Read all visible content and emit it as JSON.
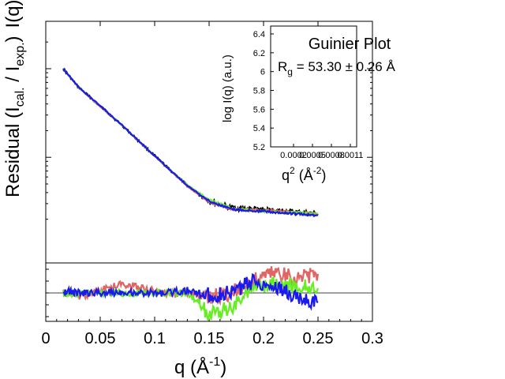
{
  "chart_data": [
    {
      "type": "line",
      "panel": "main",
      "ylabel_main": "I(q)  (a.u.)",
      "ylabel_residual": "Residual (I",
      "ylabel_residual_sub1": "cal.",
      "ylabel_residual_mid": " / I",
      "ylabel_residual_sub2": "exp.",
      "ylabel_residual_end": ")",
      "xlabel": "q (Å",
      "xlabel_sup": "-1",
      "xlabel_end": ")",
      "xlim": [
        0,
        0.3
      ],
      "x_ticks": [
        "0",
        "0.05",
        "0.1",
        "0.15",
        "0.2",
        "0.25",
        "0.3"
      ],
      "y_scale": "log",
      "grid": false,
      "series": [
        {
          "color": "#000000",
          "x": [
            0.016,
            0.03,
            0.05,
            0.07,
            0.09,
            0.11,
            0.13,
            0.15,
            0.17,
            0.19,
            0.21,
            0.23,
            0.25
          ],
          "y": [
            1.0,
            0.62,
            0.38,
            0.23,
            0.135,
            0.08,
            0.048,
            0.032,
            0.027,
            0.026,
            0.025,
            0.024,
            0.023
          ]
        },
        {
          "color": "#e06666",
          "x": [
            0.016,
            0.03,
            0.05,
            0.07,
            0.09,
            0.11,
            0.13,
            0.15,
            0.17,
            0.19,
            0.21,
            0.23,
            0.25
          ],
          "y": [
            1.0,
            0.62,
            0.37,
            0.23,
            0.134,
            0.079,
            0.047,
            0.031,
            0.026,
            0.026,
            0.025,
            0.024,
            0.023
          ]
        },
        {
          "color": "#66ee22",
          "x": [
            0.016,
            0.03,
            0.05,
            0.07,
            0.09,
            0.11,
            0.13,
            0.15,
            0.17,
            0.19,
            0.21,
            0.23,
            0.25
          ],
          "y": [
            1.0,
            0.62,
            0.38,
            0.23,
            0.135,
            0.08,
            0.049,
            0.033,
            0.027,
            0.025,
            0.024,
            0.024,
            0.023
          ]
        },
        {
          "color": "#1a1aee",
          "x": [
            0.016,
            0.03,
            0.05,
            0.07,
            0.09,
            0.11,
            0.13,
            0.15,
            0.17,
            0.19,
            0.21,
            0.23,
            0.25
          ],
          "y": [
            1.0,
            0.62,
            0.38,
            0.23,
            0.135,
            0.08,
            0.048,
            0.032,
            0.026,
            0.025,
            0.024,
            0.023,
            0.022
          ]
        }
      ]
    },
    {
      "type": "line",
      "panel": "residual",
      "xlim": [
        0,
        0.3
      ],
      "baseline": 1,
      "series": [
        {
          "color": "#e06666",
          "x": [
            0.016,
            0.03,
            0.05,
            0.07,
            0.09,
            0.11,
            0.13,
            0.15,
            0.17,
            0.19,
            0.21,
            0.23,
            0.25
          ],
          "y": [
            1.0,
            0.97,
            1.02,
            1.08,
            1.04,
            0.99,
            1.0,
            0.96,
            1.0,
            1.1,
            1.18,
            1.12,
            1.16
          ]
        },
        {
          "color": "#66ee22",
          "x": [
            0.016,
            0.03,
            0.05,
            0.07,
            0.09,
            0.11,
            0.13,
            0.15,
            0.17,
            0.19,
            0.21,
            0.23,
            0.25
          ],
          "y": [
            1.0,
            1.0,
            1.0,
            1.0,
            1.0,
            1.0,
            1.0,
            0.82,
            0.88,
            1.02,
            1.08,
            1.06,
            1.04
          ]
        },
        {
          "color": "#1a1aee",
          "x": [
            0.016,
            0.03,
            0.05,
            0.07,
            0.09,
            0.11,
            0.13,
            0.15,
            0.17,
            0.19,
            0.21,
            0.23,
            0.25
          ],
          "y": [
            1.02,
            1.0,
            1.0,
            1.01,
            1.0,
            1.0,
            1.02,
            0.98,
            1.0,
            1.1,
            1.06,
            0.96,
            0.92
          ]
        }
      ]
    },
    {
      "type": "scatter",
      "panel": "inset",
      "title": "Guinier Plot",
      "rg_label": "R",
      "rg_sub": "g",
      "rg_value": " = 53.30 ± 0.26 Å",
      "ylabel": "log I(q)  (a.u.)",
      "xlabel": "q",
      "xlabel_sup": "2",
      "xlabel_unit": "  (Å",
      "xlabel_unit_sup": "-2",
      "xlabel_end": ")",
      "y_ticks": [
        "6.4",
        "6.2",
        "6",
        "5.8",
        "5.6",
        "5.4",
        "5.2"
      ],
      "x_ticks": [
        "0.0002",
        "0.0005",
        "0.0008",
        "0.0011"
      ],
      "ylim": [
        5.2,
        6.4
      ],
      "series": []
    }
  ]
}
